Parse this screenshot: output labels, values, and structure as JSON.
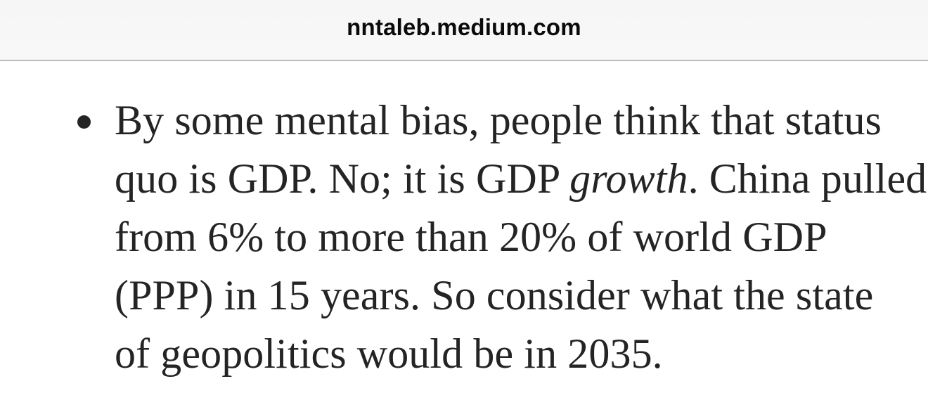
{
  "browser": {
    "url_bar": {
      "domain": "nntaleb.medium.com"
    }
  },
  "article": {
    "bullet_item": {
      "marker": "bullet-dot",
      "lines": [
        {
          "segments": [
            {
              "text": "By some mental bias, people think that status"
            }
          ]
        },
        {
          "segments": [
            {
              "text": "quo is GDP. No; it is GDP "
            },
            {
              "text": "growth",
              "italic": true
            },
            {
              "text": ". China pulled"
            }
          ]
        },
        {
          "segments": [
            {
              "text": "from 6% to more than 20% of world GDP"
            }
          ]
        },
        {
          "segments": [
            {
              "text": "(PPP) in 15 years. So consider what the state"
            }
          ]
        },
        {
          "segments": [
            {
              "text": "of geopolitics would be in 2035."
            }
          ]
        }
      ]
    }
  },
  "colors": {
    "page_bg": "#ffffff",
    "bar_bg": "#f7f7f7",
    "bar_border": "#bcbcbc",
    "bar_text": "#0b0b0b",
    "text_color": "#242424"
  }
}
